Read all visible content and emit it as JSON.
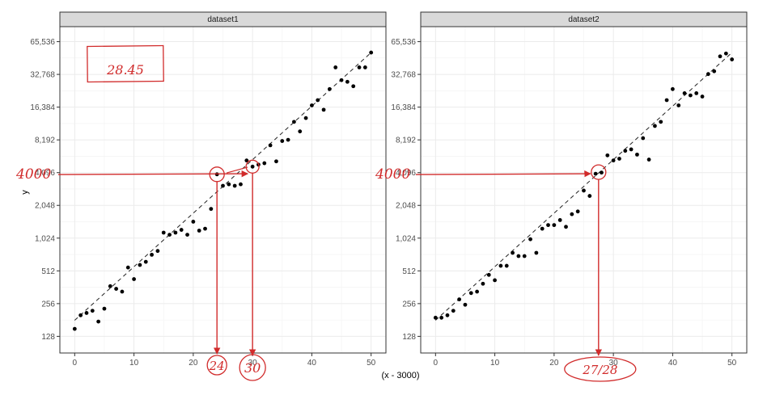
{
  "chart_data": {
    "type": "scatter",
    "xlabel": "(x - 3000)",
    "ylabel": "y",
    "y_scale": "log2",
    "grid": true,
    "x_ticks": [
      0,
      10,
      20,
      30,
      40,
      50
    ],
    "y_ticks": [
      128,
      256,
      512,
      1024,
      2048,
      4096,
      8192,
      16384,
      32768,
      65536
    ],
    "y_tick_labels": [
      "128",
      "256",
      "512",
      "1,024",
      "2,048",
      "4,096",
      "8,192",
      "16,384",
      "32,768",
      "65,536"
    ],
    "xlim": [
      -2.5,
      52.5
    ],
    "ylim": [
      90,
      90000
    ],
    "trend_line": "dashed",
    "panels": [
      {
        "name": "dataset1",
        "x": [
          0,
          1,
          2,
          3,
          4,
          5,
          6,
          7,
          8,
          9,
          10,
          11,
          12,
          13,
          14,
          15,
          16,
          17,
          18,
          19,
          20,
          21,
          22,
          23,
          24,
          25,
          26,
          27,
          28,
          29,
          30,
          31,
          32,
          33,
          34,
          35,
          36,
          37,
          38,
          39,
          40,
          41,
          42,
          43,
          44,
          45,
          46,
          47,
          48,
          49,
          50
        ],
        "y": [
          150,
          200,
          210,
          220,
          175,
          230,
          370,
          350,
          330,
          550,
          430,
          580,
          620,
          720,
          780,
          1150,
          1100,
          1150,
          1220,
          1100,
          1450,
          1200,
          1250,
          1900,
          3950,
          3100,
          3200,
          3100,
          3200,
          5300,
          4650,
          4850,
          5000,
          7300,
          5200,
          8000,
          8200,
          12000,
          9800,
          13000,
          17000,
          19000,
          15500,
          24000,
          38000,
          29000,
          28000,
          25500,
          38000,
          38000,
          52000
        ],
        "trend": [
          [
            0,
            180
          ],
          [
            50,
            52000
          ]
        ],
        "annotations": {
          "box_value": "28.45",
          "y_value": "4000",
          "x_values": [
            "24",
            "30"
          ]
        }
      },
      {
        "name": "dataset2",
        "x": [
          0,
          1,
          2,
          3,
          4,
          5,
          6,
          7,
          8,
          9,
          10,
          11,
          12,
          13,
          14,
          15,
          16,
          17,
          18,
          19,
          20,
          21,
          22,
          23,
          24,
          25,
          26,
          27,
          28,
          29,
          30,
          31,
          32,
          33,
          34,
          35,
          36,
          37,
          38,
          39,
          40,
          41,
          42,
          43,
          44,
          45,
          46,
          47,
          48,
          49,
          50
        ],
        "y": [
          190,
          190,
          200,
          220,
          280,
          250,
          320,
          330,
          390,
          470,
          420,
          570,
          570,
          750,
          700,
          700,
          1000,
          750,
          1250,
          1350,
          1350,
          1500,
          1300,
          1700,
          1800,
          2800,
          2500,
          4000,
          4100,
          5900,
          5300,
          5500,
          6500,
          6700,
          6000,
          8500,
          5400,
          11000,
          12000,
          19000,
          24000,
          17000,
          22000,
          21000,
          22000,
          20500,
          33000,
          35000,
          48000,
          51000,
          45000
        ],
        "trend": [
          [
            0,
            180
          ],
          [
            50,
            52000
          ]
        ],
        "annotations": {
          "y_value": "4000",
          "x_value": "27/28"
        }
      }
    ]
  }
}
